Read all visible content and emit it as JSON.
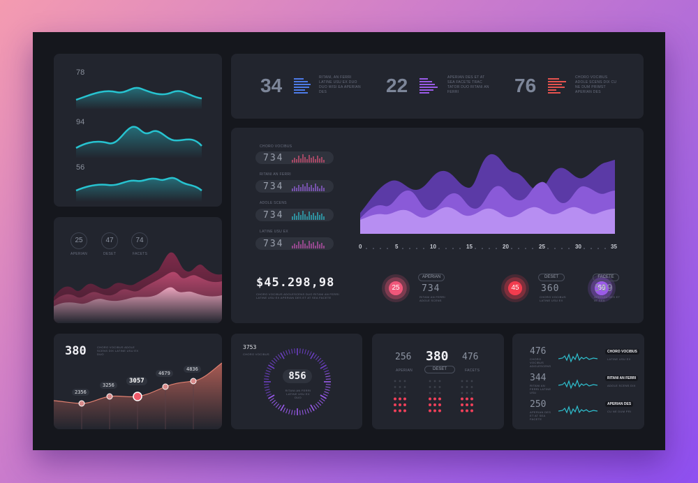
{
  "waves_panel": {
    "values": [
      "78",
      "94",
      "56"
    ],
    "color": "#27c3d0"
  },
  "stats_bar": [
    {
      "value": "34",
      "text": "RITANI, AN FERRI LATINE USU EX DUO DUO WISI EA APERIAN DES",
      "color": "#4d7be8"
    },
    {
      "value": "22",
      "text": "APERIAN DES ET AT SEA FACETE TRAC TATOR DUO RITANI AN FERRI",
      "color": "#9a5be8"
    },
    {
      "value": "76",
      "text": "CHORO VOCIBUS ADOLE SCENS DIX CU NE DUM PRIMST APERIAN DES",
      "color": "#e6534f"
    }
  ],
  "main_panel": {
    "metric_rows": [
      {
        "label": "CHORO VOCIBUS",
        "value": "734",
        "color": "#e0557a"
      },
      {
        "label": "RITANI AN FERRI",
        "value": "734",
        "color": "#9b63e6"
      },
      {
        "label": "ADOLE SCENS",
        "value": "734",
        "color": "#2fc0cf"
      },
      {
        "label": "LATINE USU EX",
        "value": "734",
        "color": "#c955b8"
      }
    ],
    "area_chart": {
      "x_ticks": [
        "0",
        "5",
        "10",
        "15",
        "20",
        "25",
        "30",
        "35"
      ],
      "colors": [
        "#5b3aa6",
        "#8a5ad8",
        "#b78ef2"
      ]
    },
    "amount": "$45.298,98",
    "amount_caption": "CHORO VOCIBUS ADOLESCENS DUO RITANI AN FERRI LATINE USU EX APERIAN DES ET AT SEA FACETE",
    "gauges": [
      {
        "value": "25",
        "label": "APERIAN",
        "number": "734",
        "caption": "RITANI AN FERRI ADOLE SCENS",
        "color": "#f0577a"
      },
      {
        "value": "45",
        "label": "DESET",
        "number": "360",
        "caption": "CHORO VOCIBUS LATINE USU EX",
        "color": "#f23c4e"
      },
      {
        "value": "69",
        "label": "FACETE",
        "number": "509",
        "caption": "APERIAN DES ET AT SEA",
        "color": "#9b5be8"
      }
    ]
  },
  "ridge_panel": {
    "circles": [
      {
        "value": "25",
        "label": "APERIAN"
      },
      {
        "value": "47",
        "label": "DESET"
      },
      {
        "value": "74",
        "label": "FACETS"
      }
    ]
  },
  "line_panel": {
    "headline": "380",
    "caption": "CHORO VOCIBUS ADOLE SCENS DIX LATINE USU EX DUO",
    "points": [
      "2356",
      "3256",
      "3057",
      "4679",
      "4836"
    ]
  },
  "dial_panel": {
    "top_value": "3753",
    "top_label": "CHORO VOCIBUS",
    "center_value": "856",
    "caption": "RITANI AN FERRI LATINE USU EX DUO"
  },
  "dots_panel": {
    "values": [
      "256",
      "380",
      "476"
    ],
    "labels": [
      "APERIAN",
      "DESET",
      "FACETS"
    ]
  },
  "list_panel": {
    "rows": [
      {
        "value": "476",
        "caption": "CHORO VOCIBUS ADOLESCENS",
        "tag": "CHORO VOCIBUS",
        "subcaption": "LATINE USU EX"
      },
      {
        "value": "344",
        "caption": "RITANI AN FERRI LATINE USU",
        "tag": "RITANI AN FERRI",
        "subcaption": "ADOLE SCENS DIX"
      },
      {
        "value": "250",
        "caption": "APERIAN DES ET AT SEA FACETE",
        "tag": "APERIAN DES",
        "subcaption": "CU NE DUM PRI"
      }
    ]
  }
}
